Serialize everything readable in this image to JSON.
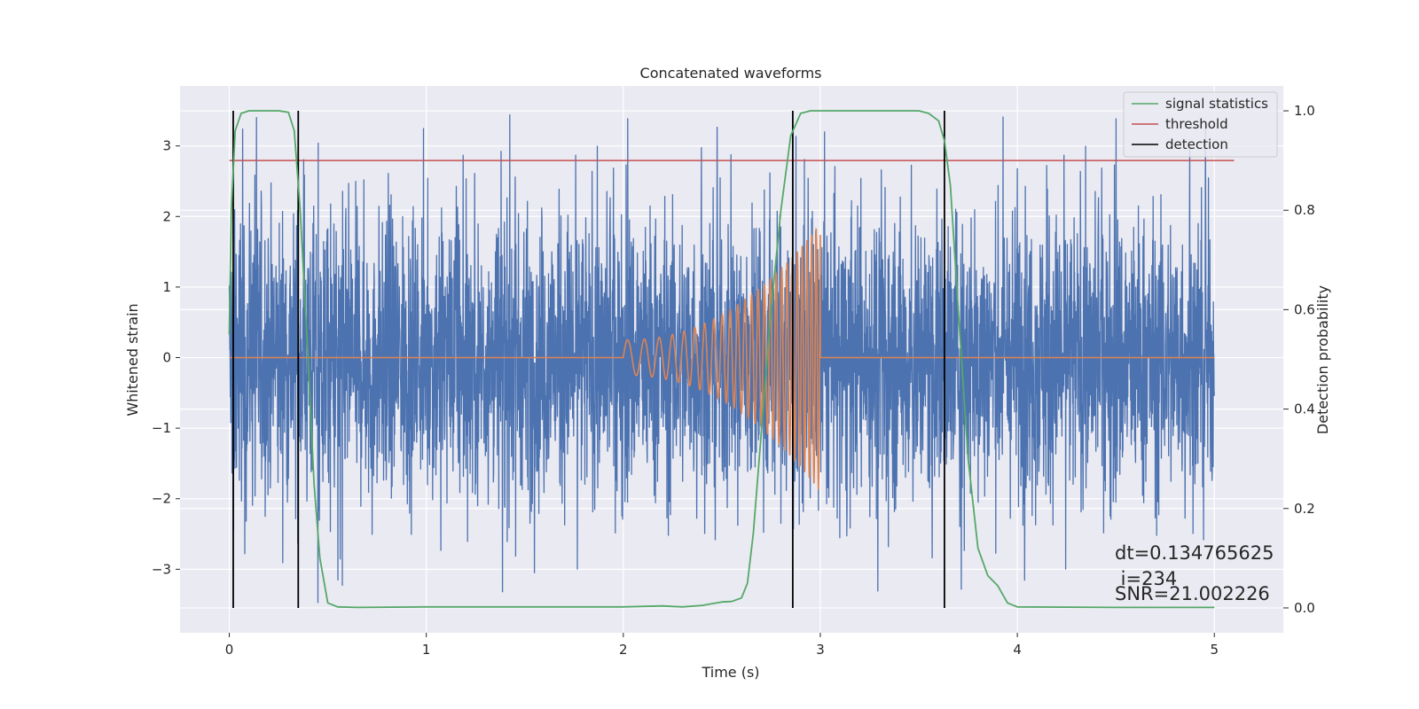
{
  "chart_data": {
    "type": "line",
    "title": "Concatenated waveforms",
    "xlabel": "Time (s)",
    "ylabel_left": "Whitened strain",
    "ylabel_right": "Detection probability",
    "xlim": [
      -0.25,
      5.35
    ],
    "ylim_left": [
      -3.9,
      3.85
    ],
    "ylim_right": [
      -0.05,
      1.05
    ],
    "x_ticks": [
      0,
      1,
      2,
      3,
      4,
      5
    ],
    "y_ticks_left": [
      -3,
      -2,
      -1,
      0,
      1,
      2,
      3
    ],
    "y_ticks_right": [
      0.0,
      0.2,
      0.4,
      0.6,
      0.8,
      1.0
    ],
    "grid": true,
    "legend_position": "upper right",
    "legend": [
      "signal statistics",
      "threshold",
      "detection"
    ],
    "series": [
      {
        "kind": "noise",
        "axis": "left",
        "color": "#4c72b0",
        "x_range": [
          0,
          5
        ],
        "amplitude_typical": 1.2,
        "amplitude_max": 3.5
      },
      {
        "kind": "chirp",
        "axis": "left",
        "color": "#dd8452",
        "x_range": [
          2.0,
          3.0
        ],
        "baseline": 0.0,
        "amplitude_start": 0.25,
        "amplitude_end": 1.9
      },
      {
        "name": "signal statistics",
        "axis": "right",
        "color": "#55a868",
        "x": [
          0.0,
          0.01,
          0.03,
          0.06,
          0.1,
          0.15,
          0.25,
          0.3,
          0.33,
          0.36,
          0.4,
          0.43,
          0.46,
          0.5,
          0.55,
          0.65,
          1.0,
          1.5,
          2.0,
          2.2,
          2.25,
          2.3,
          2.4,
          2.5,
          2.55,
          2.6,
          2.63,
          2.66,
          2.7,
          2.75,
          2.8,
          2.85,
          2.9,
          2.95,
          3.0,
          3.3,
          3.5,
          3.55,
          3.6,
          3.63,
          3.66,
          3.7,
          3.75,
          3.8,
          3.85,
          3.9,
          3.95,
          4.0,
          4.5,
          5.0
        ],
        "y": [
          0.55,
          0.8,
          0.96,
          0.995,
          1.0,
          1.0,
          1.0,
          0.997,
          0.96,
          0.8,
          0.5,
          0.25,
          0.1,
          0.01,
          0.002,
          0.001,
          0.002,
          0.002,
          0.002,
          0.004,
          0.003,
          0.002,
          0.005,
          0.012,
          0.013,
          0.02,
          0.05,
          0.15,
          0.35,
          0.6,
          0.8,
          0.95,
          0.995,
          1.0,
          1.0,
          1.0,
          1.0,
          0.995,
          0.98,
          0.94,
          0.85,
          0.6,
          0.3,
          0.12,
          0.065,
          0.045,
          0.01,
          0.002,
          0.001,
          0.001
        ]
      },
      {
        "name": "threshold",
        "axis": "right",
        "color": "#c44e52",
        "x": [
          0.0,
          5.1
        ],
        "y": [
          0.9,
          0.9
        ]
      }
    ],
    "detections": {
      "color": "#000000",
      "x": [
        0.02,
        0.35,
        2.86,
        3.63
      ],
      "y_range": [
        0.0,
        1.0
      ]
    },
    "annotations": {
      "dt": "dt=0.134765625",
      "index": " i=234",
      "snr": "SNR=21.002226"
    }
  }
}
